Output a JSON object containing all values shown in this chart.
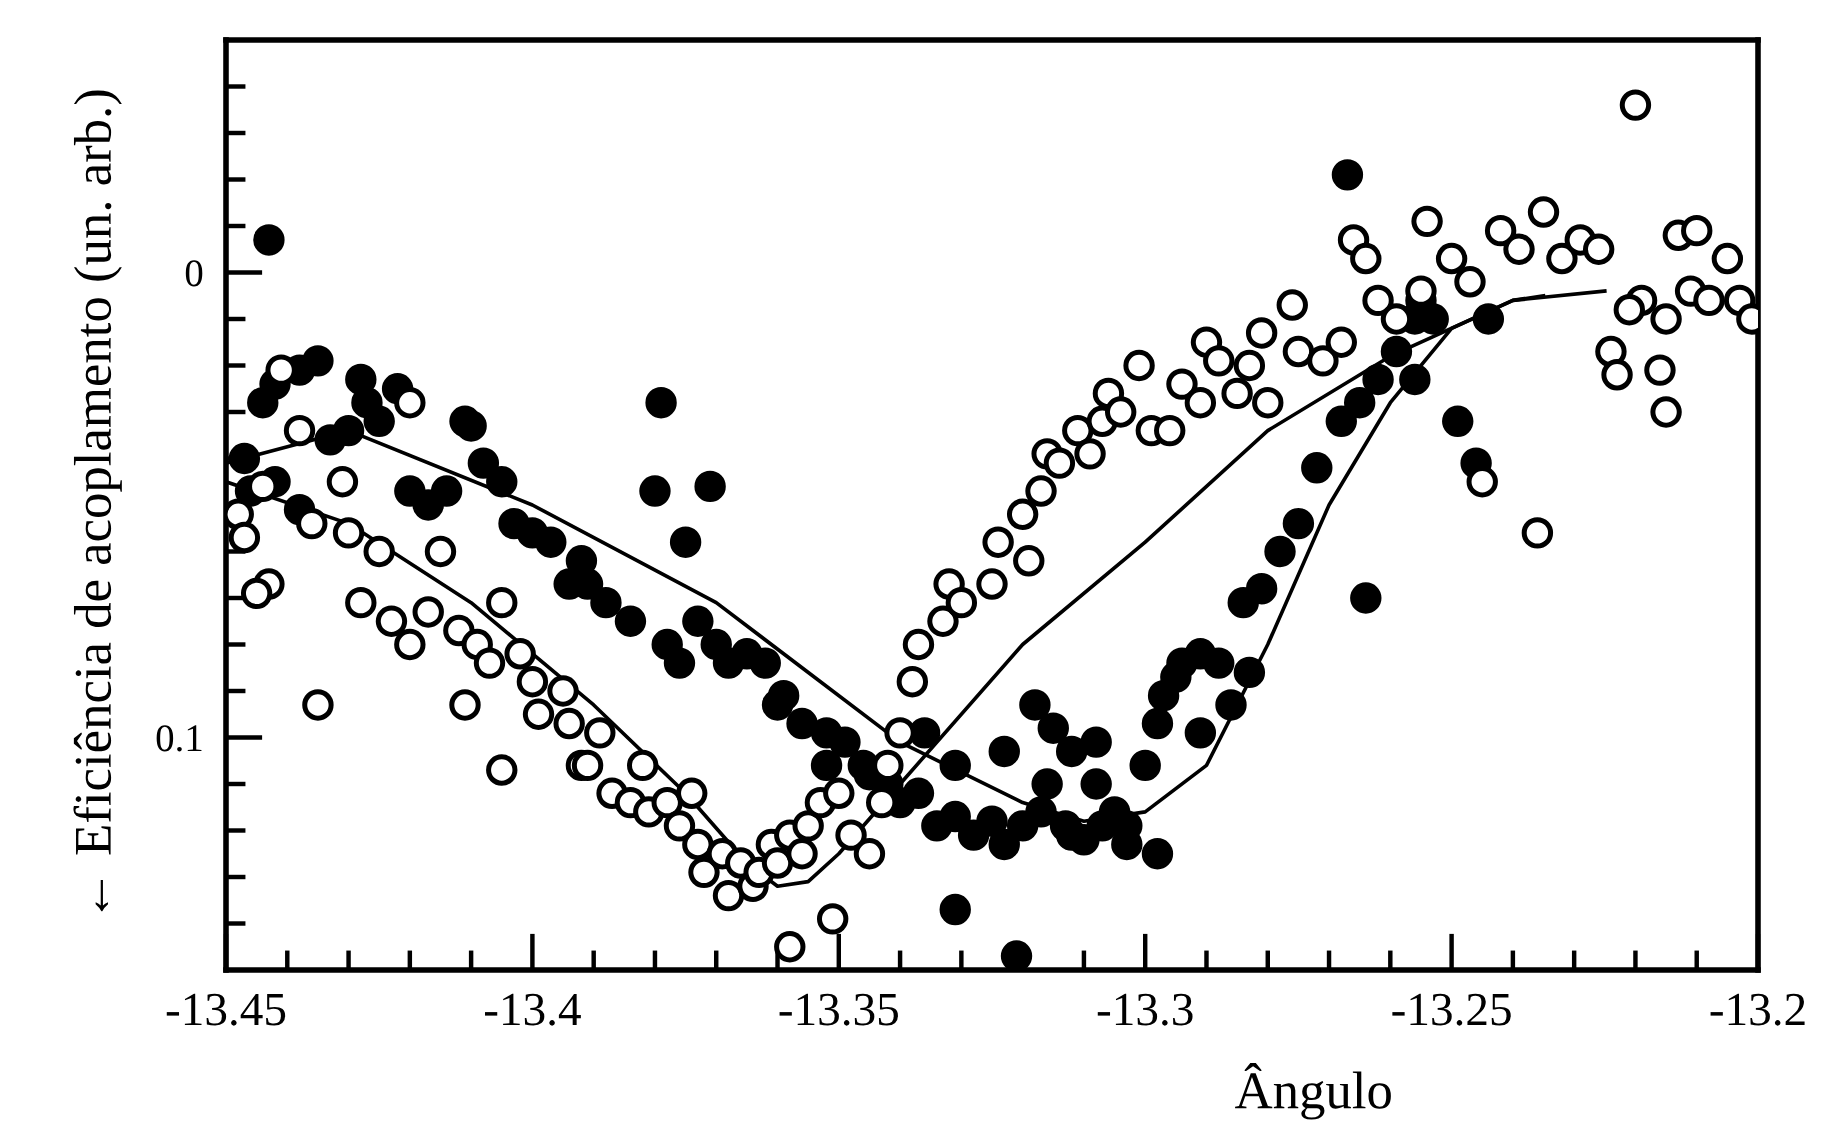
{
  "chart_data": {
    "type": "scatter",
    "xlabel": "Ângulo",
    "ylabel": "← Eficiência de acoplamento (un. arb.)",
    "xlim": [
      -13.45,
      -13.2
    ],
    "ylim": [
      0.15,
      -0.05
    ],
    "xticks": [
      -13.45,
      {
        "value": -13.44,
        "label": null
      },
      {
        "value": -13.43,
        "label": null
      },
      {
        "value": -13.42,
        "label": null
      },
      {
        "value": -13.41,
        "label": null
      },
      -13.4,
      {
        "value": -13.39,
        "label": null
      },
      {
        "value": -13.38,
        "label": null
      },
      {
        "value": -13.37,
        "label": null
      },
      {
        "value": -13.36,
        "label": null
      },
      -13.35,
      {
        "value": -13.34,
        "label": null
      },
      {
        "value": -13.33,
        "label": null
      },
      {
        "value": -13.32,
        "label": null
      },
      {
        "value": -13.31,
        "label": null
      },
      -13.3,
      {
        "value": -13.29,
        "label": null
      },
      {
        "value": -13.28,
        "label": null
      },
      {
        "value": -13.27,
        "label": null
      },
      {
        "value": -13.26,
        "label": null
      },
      -13.25,
      {
        "value": -13.24,
        "label": null
      },
      {
        "value": -13.23,
        "label": null
      },
      {
        "value": -13.22,
        "label": null
      },
      {
        "value": -13.21,
        "label": null
      },
      -13.2
    ],
    "yticks": [
      {
        "value": -0.04,
        "label": null
      },
      {
        "value": -0.03,
        "label": null
      },
      {
        "value": -0.02,
        "label": null
      },
      {
        "value": -0.01,
        "label": null
      },
      0,
      {
        "value": 0.01,
        "label": null
      },
      {
        "value": 0.02,
        "label": null
      },
      {
        "value": 0.03,
        "label": null
      },
      {
        "value": 0.04,
        "label": null
      },
      {
        "value": 0.05,
        "label": null
      },
      {
        "value": 0.06,
        "label": null
      },
      {
        "value": 0.07,
        "label": null
      },
      {
        "value": 0.08,
        "label": null
      },
      {
        "value": 0.09,
        "label": null
      },
      0.1,
      {
        "value": 0.11,
        "label": null
      },
      {
        "value": 0.12,
        "label": null
      },
      {
        "value": 0.13,
        "label": null
      },
      {
        "value": 0.14,
        "label": null
      }
    ],
    "grid": false,
    "legend": false,
    "series": [
      {
        "marker": "circle",
        "color": "#000000",
        "x": [
          -13.443,
          -13.447,
          -13.444,
          -13.442,
          -13.438,
          -13.435,
          -13.446,
          -13.442,
          -13.438,
          -13.433,
          -13.43,
          -13.427,
          -13.422,
          -13.42,
          -13.417,
          -13.414,
          -13.411,
          -13.408,
          -13.405,
          -13.403,
          -13.4,
          -13.397,
          -13.394,
          -13.392,
          -13.391,
          -13.388,
          -13.384,
          -13.379,
          -13.378,
          -13.376,
          -13.375,
          -13.373,
          -13.37,
          -13.368,
          -13.365,
          -13.362,
          -13.36,
          -13.359,
          -13.356,
          -13.352,
          -13.352,
          -13.349,
          -13.346,
          -13.345,
          -13.342,
          -13.34,
          -13.337,
          -13.334,
          -13.331,
          -13.328,
          -13.325,
          -13.323,
          -13.32,
          -13.317,
          -13.316,
          -13.313,
          -13.312,
          -13.308,
          -13.31,
          -13.307,
          -13.305,
          -13.303,
          -13.3,
          -13.298,
          -13.297,
          -13.294,
          -13.291,
          -13.288,
          -13.284,
          -13.283,
          -13.281,
          -13.278,
          -13.275,
          -13.272,
          -13.268,
          -13.265,
          -13.262,
          -13.259,
          -13.256,
          -13.255,
          -13.256,
          -13.253,
          -13.267,
          -13.244,
          -13.246,
          -13.249,
          -13.264,
          -13.286,
          -13.291,
          -13.321,
          -13.331,
          -13.295,
          -13.315,
          -13.38,
          -13.371,
          -13.41,
          -13.428,
          -13.425,
          -13.318,
          -13.312,
          -13.298,
          -13.308,
          -13.303,
          -13.323,
          -13.336,
          -13.331
        ],
        "values": [
          -0.007,
          0.04,
          0.028,
          0.024,
          0.021,
          0.019,
          0.047,
          0.045,
          0.051,
          0.036,
          0.034,
          0.028,
          0.025,
          0.047,
          0.05,
          0.047,
          0.032,
          0.041,
          0.045,
          0.054,
          0.056,
          0.058,
          0.067,
          0.062,
          0.067,
          0.071,
          0.075,
          0.028,
          0.08,
          0.084,
          0.058,
          0.075,
          0.08,
          0.084,
          0.082,
          0.084,
          0.093,
          0.091,
          0.097,
          0.099,
          0.106,
          0.101,
          0.106,
          0.108,
          0.11,
          0.114,
          0.112,
          0.119,
          0.117,
          0.121,
          0.118,
          0.123,
          0.119,
          0.116,
          0.11,
          0.119,
          0.121,
          0.101,
          0.122,
          0.119,
          0.116,
          0.119,
          0.106,
          0.097,
          0.091,
          0.084,
          0.082,
          0.084,
          0.071,
          0.086,
          0.068,
          0.06,
          0.054,
          0.042,
          0.032,
          0.028,
          0.023,
          0.017,
          0.01,
          0.006,
          0.023,
          0.01,
          -0.021,
          0.01,
          0.041,
          0.032,
          0.07,
          0.093,
          0.099,
          0.147,
          0.137,
          0.087,
          0.098,
          0.047,
          0.046,
          0.033,
          0.023,
          0.032,
          0.093,
          0.103,
          0.125,
          0.11,
          0.123,
          0.103,
          0.099,
          0.106
        ]
      },
      {
        "marker": "open_circle",
        "color": "#000000",
        "x": [
          -13.448,
          -13.447,
          -13.444,
          -13.443,
          -13.445,
          -13.441,
          -13.438,
          -13.436,
          -13.435,
          -13.431,
          -13.43,
          -13.428,
          -13.425,
          -13.423,
          -13.42,
          -13.42,
          -13.417,
          -13.415,
          -13.412,
          -13.411,
          -13.409,
          -13.407,
          -13.405,
          -13.405,
          -13.402,
          -13.4,
          -13.399,
          -13.395,
          -13.394,
          -13.392,
          -13.391,
          -13.389,
          -13.387,
          -13.384,
          -13.382,
          -13.381,
          -13.378,
          -13.376,
          -13.374,
          -13.373,
          -13.372,
          -13.369,
          -13.368,
          -13.366,
          -13.364,
          -13.363,
          -13.361,
          -13.36,
          -13.358,
          -13.356,
          -13.358,
          -13.351,
          -13.355,
          -13.353,
          -13.35,
          -13.348,
          -13.345,
          -13.343,
          -13.342,
          -13.34,
          -13.338,
          -13.337,
          -13.333,
          -13.332,
          -13.33,
          -13.325,
          -13.324,
          -13.32,
          -13.319,
          -13.317,
          -13.316,
          -13.314,
          -13.311,
          -13.309,
          -13.307,
          -13.306,
          -13.304,
          -13.301,
          -13.299,
          -13.296,
          -13.294,
          -13.291,
          -13.29,
          -13.288,
          -13.285,
          -13.283,
          -13.281,
          -13.28,
          -13.276,
          -13.275,
          -13.271,
          -13.268,
          -13.266,
          -13.264,
          -13.262,
          -13.259,
          -13.255,
          -13.254,
          -13.25,
          -13.247,
          -13.245,
          -13.242,
          -13.239,
          -13.236,
          -13.235,
          -13.232,
          -13.229,
          -13.226,
          -13.224,
          -13.223,
          -13.22,
          -13.219,
          -13.216,
          -13.215,
          -13.215,
          -13.213,
          -13.21,
          -13.211,
          -13.208,
          -13.205,
          -13.203,
          -13.201,
          -13.221
        ],
        "values": [
          0.052,
          0.057,
          0.046,
          0.067,
          0.069,
          0.021,
          0.034,
          0.054,
          0.093,
          0.045,
          0.056,
          0.071,
          0.06,
          0.075,
          0.028,
          0.08,
          0.073,
          0.06,
          0.077,
          0.093,
          0.08,
          0.084,
          0.071,
          0.107,
          0.082,
          0.088,
          0.095,
          0.09,
          0.097,
          0.106,
          0.106,
          0.099,
          0.112,
          0.114,
          0.106,
          0.116,
          0.114,
          0.119,
          0.112,
          0.123,
          0.129,
          0.125,
          0.134,
          0.127,
          0.132,
          0.129,
          0.123,
          0.127,
          0.121,
          0.125,
          0.145,
          0.139,
          0.119,
          0.114,
          0.112,
          0.121,
          0.125,
          0.114,
          0.106,
          0.099,
          0.088,
          0.08,
          0.075,
          0.067,
          0.071,
          0.067,
          0.058,
          0.052,
          0.062,
          0.047,
          0.039,
          0.041,
          0.034,
          0.039,
          0.032,
          0.026,
          0.03,
          0.02,
          0.034,
          0.034,
          0.024,
          0.028,
          0.015,
          0.019,
          0.026,
          0.02,
          0.013,
          0.028,
          0.007,
          0.017,
          0.019,
          0.015,
          -0.007,
          -0.003,
          0.006,
          0.01,
          0.004,
          -0.011,
          -0.003,
          0.002,
          0.045,
          -0.009,
          -0.005,
          0.056,
          -0.013,
          -0.003,
          -0.007,
          -0.005,
          0.017,
          0.022,
          -0.036,
          0.006,
          0.021,
          0.01,
          0.03,
          -0.008,
          -0.009,
          0.004,
          0.006,
          -0.003,
          0.006,
          0.01,
          0.008
        ]
      },
      {
        "type": "line",
        "color": "#000000",
        "line_style": "solid",
        "x": [
          -13.45,
          -13.43,
          -13.4,
          -13.37,
          -13.34,
          -13.32,
          -13.31,
          -13.3,
          -13.29,
          -13.28,
          -13.27,
          -13.26,
          -13.25,
          -13.24,
          -13.235
        ],
        "values": [
          0.041,
          0.034,
          0.05,
          0.071,
          0.101,
          0.114,
          0.118,
          0.116,
          0.106,
          0.08,
          0.05,
          0.028,
          0.012,
          0.006,
          0.005
        ]
      },
      {
        "type": "line",
        "color": "#000000",
        "line_style": "solid",
        "x": [
          -13.45,
          -13.43,
          -13.41,
          -13.39,
          -13.375,
          -13.365,
          -13.36,
          -13.355,
          -13.35,
          -13.34,
          -13.32,
          -13.3,
          -13.28,
          -13.26,
          -13.24,
          -13.225
        ],
        "values": [
          0.045,
          0.054,
          0.071,
          0.093,
          0.112,
          0.127,
          0.132,
          0.131,
          0.125,
          0.11,
          0.08,
          0.058,
          0.034,
          0.018,
          0.006,
          0.004
        ]
      }
    ]
  }
}
